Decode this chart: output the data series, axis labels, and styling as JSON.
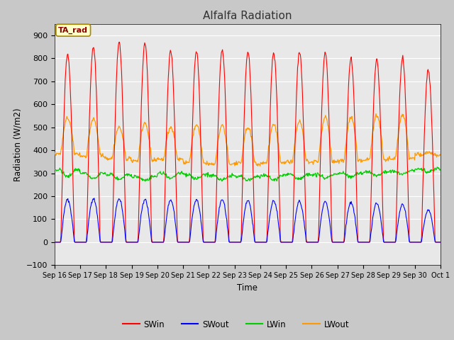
{
  "title": "Alfalfa Radiation",
  "ylabel": "Radiation (W/m2)",
  "xlabel": "Time",
  "annotation": "TA_rad",
  "ylim": [
    -100,
    950
  ],
  "yticks": [
    -100,
    0,
    100,
    200,
    300,
    400,
    500,
    600,
    700,
    800,
    900
  ],
  "xtick_labels": [
    "Sep 16",
    "Sep 17",
    "Sep 18",
    "Sep 19",
    "Sep 20",
    "Sep 21",
    "Sep 22",
    "Sep 23",
    "Sep 24",
    "Sep 25",
    "Sep 26",
    "Sep 27",
    "Sep 28",
    "Sep 29",
    "Sep 30",
    "Oct 1"
  ],
  "colors": {
    "SWin": "#ff0000",
    "SWout": "#0000ff",
    "LWin": "#00cc00",
    "LWout": "#ff9900"
  },
  "fig_bg_color": "#c8c8c8",
  "plot_bg_color": "#e8e8e8",
  "days": 15,
  "points_per_day": 48,
  "SWin_peaks": [
    820,
    850,
    870,
    865,
    835,
    830,
    840,
    830,
    825,
    830,
    825,
    800,
    795,
    800,
    750
  ],
  "SWout_peaks": [
    185,
    190,
    190,
    185,
    183,
    185,
    185,
    180,
    180,
    178,
    175,
    173,
    170,
    165,
    140
  ],
  "LWin_baseline": [
    315,
    300,
    295,
    285,
    300,
    295,
    290,
    285,
    290,
    295,
    295,
    300,
    305,
    310,
    320
  ],
  "LWin_daytime_dip": [
    285,
    275,
    275,
    270,
    275,
    275,
    270,
    270,
    270,
    275,
    280,
    285,
    290,
    295,
    305
  ],
  "LWout_baseline": [
    385,
    375,
    365,
    355,
    360,
    345,
    340,
    340,
    345,
    350,
    350,
    355,
    360,
    365,
    380
  ],
  "LWout_peaks": [
    540,
    535,
    500,
    520,
    500,
    510,
    510,
    500,
    510,
    525,
    545,
    545,
    550,
    555,
    390
  ]
}
